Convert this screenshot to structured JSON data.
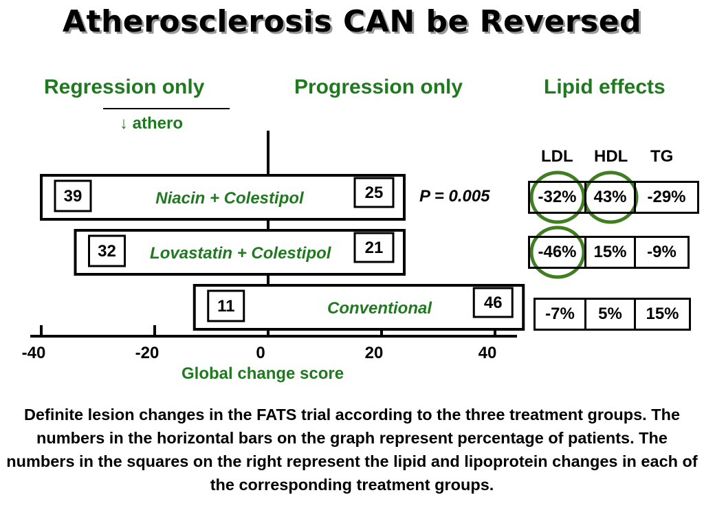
{
  "title": "Atherosclerosis CAN be Reversed",
  "headers": {
    "regression": "Regression only",
    "progression": "Progression only",
    "lipid": "Lipid effects"
  },
  "athero_note": "↓ athero",
  "p_value": "P = 0.005",
  "lipid_columns": [
    "LDL",
    "HDL",
    "TG"
  ],
  "caption": "Definite lesion changes in the FATS trial according to the three treatment groups. The numbers in the horizontal bars on the graph represent percentage of patients. The numbers in the squares on the right represent the lipid and lipoprotein changes in each of the corresponding treatment groups.",
  "colors": {
    "green": "#1f7a1f",
    "circle": "#3f7f1f",
    "black": "#000000"
  },
  "chart_data": {
    "type": "bar",
    "title": "Atherosclerosis CAN be Reversed",
    "xlabel": "Global change score",
    "ylabel": "",
    "xlim": [
      -40,
      40
    ],
    "xticks": [
      -40,
      -20,
      0,
      20,
      40
    ],
    "groups": [
      {
        "name": "Niacin + Colestipol",
        "regression": 39,
        "progression": 25,
        "range": [
          -40,
          24
        ],
        "ldl": "-32%",
        "hdl": "43%",
        "tg": "-29%",
        "circled": [
          "ldl",
          "hdl"
        ]
      },
      {
        "name": "Lovastatin + Colestipol",
        "regression": 32,
        "progression": 21,
        "range": [
          -34,
          24
        ],
        "ldl": "-46%",
        "hdl": "15%",
        "tg": "-9%",
        "circled": [
          "ldl"
        ]
      },
      {
        "name": "Conventional",
        "regression": 11,
        "progression": 46,
        "range": [
          -13,
          45
        ],
        "ldl": "-7%",
        "hdl": "5%",
        "tg": "15%",
        "circled": []
      }
    ]
  }
}
